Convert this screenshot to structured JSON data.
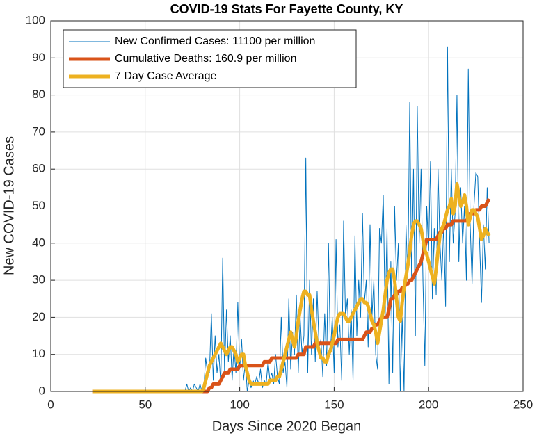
{
  "chart_data": {
    "type": "line",
    "title": "COVID-19 Stats For Fayette County, KY",
    "x_label": "Days Since 2020 Began",
    "y_label": "New COVID-19 Cases",
    "xlim": [
      0,
      250
    ],
    "xticks": [
      0,
      50,
      100,
      150,
      200,
      250
    ],
    "ylim": [
      0,
      100
    ],
    "yticks": [
      0,
      10,
      20,
      30,
      40,
      50,
      60,
      70,
      80,
      90,
      100
    ],
    "grid": true,
    "legend_position": "upper left",
    "x": [
      22,
      23,
      24,
      25,
      26,
      27,
      28,
      29,
      30,
      31,
      32,
      33,
      34,
      35,
      36,
      37,
      38,
      39,
      40,
      41,
      42,
      43,
      44,
      45,
      46,
      47,
      48,
      49,
      50,
      51,
      52,
      53,
      54,
      55,
      56,
      57,
      58,
      59,
      60,
      61,
      62,
      63,
      64,
      65,
      66,
      67,
      68,
      69,
      70,
      71,
      72,
      73,
      74,
      75,
      76,
      77,
      78,
      79,
      80,
      81,
      82,
      83,
      84,
      85,
      86,
      87,
      88,
      89,
      90,
      91,
      92,
      93,
      94,
      95,
      96,
      97,
      98,
      99,
      100,
      101,
      102,
      103,
      104,
      105,
      106,
      107,
      108,
      109,
      110,
      111,
      112,
      113,
      114,
      115,
      116,
      117,
      118,
      119,
      120,
      121,
      122,
      123,
      124,
      125,
      126,
      127,
      128,
      129,
      130,
      131,
      132,
      133,
      134,
      135,
      136,
      137,
      138,
      139,
      140,
      141,
      142,
      143,
      144,
      145,
      146,
      147,
      148,
      149,
      150,
      151,
      152,
      153,
      154,
      155,
      156,
      157,
      158,
      159,
      160,
      161,
      162,
      163,
      164,
      165,
      166,
      167,
      168,
      169,
      170,
      171,
      172,
      173,
      174,
      175,
      176,
      177,
      178,
      179,
      180,
      181,
      182,
      183,
      184,
      185,
      186,
      187,
      188,
      189,
      190,
      191,
      192,
      193,
      194,
      195,
      196,
      197,
      198,
      199,
      200,
      201,
      202,
      203,
      204,
      205,
      206,
      207,
      208,
      209,
      210,
      211,
      212,
      213,
      214,
      215,
      216,
      217,
      218,
      219,
      220,
      221,
      222,
      223,
      224,
      225,
      226,
      227,
      228,
      229,
      230,
      231,
      232
    ],
    "series": [
      {
        "name": "New Confirmed Cases: 11100 per million",
        "color": "#0072bd",
        "width": 1,
        "values": [
          0,
          0,
          0,
          0,
          0,
          0,
          0,
          0,
          0,
          0,
          0,
          0,
          0,
          0,
          0,
          0,
          0,
          0,
          0,
          0,
          0,
          0,
          0,
          0,
          0,
          0,
          0,
          0,
          0,
          0,
          0,
          0,
          0,
          0,
          0,
          0,
          0,
          0,
          0,
          0,
          0,
          0,
          0,
          0,
          0,
          0,
          0,
          0,
          0,
          0,
          2,
          0,
          1,
          0,
          2,
          1,
          0,
          2,
          0,
          1,
          9,
          5,
          5,
          21,
          3,
          15,
          5,
          10,
          2,
          36,
          5,
          22,
          8,
          15,
          3,
          12,
          5,
          24,
          6,
          14,
          3,
          8,
          0,
          3,
          1,
          3,
          2,
          4,
          2,
          6,
          1,
          3,
          2,
          8,
          3,
          5,
          2,
          10,
          4,
          2,
          20,
          5,
          8,
          1,
          25,
          6,
          16,
          10,
          26,
          5,
          20,
          10,
          15,
          63,
          5,
          30,
          10,
          25,
          8,
          27,
          12,
          14,
          4,
          21,
          7,
          40,
          10,
          20,
          5,
          41,
          12,
          18,
          3,
          46,
          20,
          25,
          10,
          22,
          3,
          42,
          15,
          30,
          20,
          48,
          24,
          30,
          12,
          45,
          20,
          30,
          10,
          6,
          44,
          40,
          53,
          20,
          44,
          2,
          35,
          5,
          50,
          30,
          40,
          0,
          20,
          0,
          45,
          30,
          78,
          30,
          60,
          15,
          77,
          40,
          60,
          30,
          7,
          50,
          38,
          62,
          25,
          44,
          26,
          60,
          40,
          30,
          45,
          23,
          93,
          35,
          60,
          40,
          48,
          80,
          35,
          55,
          40,
          50,
          30,
          87,
          45,
          29,
          50,
          59,
          58,
          40,
          24,
          45,
          33,
          55,
          40
        ]
      },
      {
        "name": "Cumulative Deaths: 160.9 per million",
        "color": "#d95319",
        "width": 5,
        "values": [
          0,
          0,
          0,
          0,
          0,
          0,
          0,
          0,
          0,
          0,
          0,
          0,
          0,
          0,
          0,
          0,
          0,
          0,
          0,
          0,
          0,
          0,
          0,
          0,
          0,
          0,
          0,
          0,
          0,
          0,
          0,
          0,
          0,
          0,
          0,
          0,
          0,
          0,
          0,
          0,
          0,
          0,
          0,
          0,
          0,
          0,
          0,
          0,
          0,
          0,
          0,
          0,
          0,
          0,
          0,
          0,
          0,
          0,
          0,
          0,
          0,
          0,
          1,
          1,
          2,
          2,
          2,
          2,
          3,
          4,
          5,
          5,
          5,
          6,
          6,
          6,
          6,
          6,
          7,
          7,
          7,
          7,
          7,
          7,
          7,
          7,
          7,
          7,
          7,
          7,
          7,
          8,
          8,
          8,
          8,
          9,
          9,
          9,
          9,
          9,
          9,
          9,
          9,
          9,
          9,
          9,
          9,
          9,
          9,
          10,
          10,
          10,
          10,
          12,
          12,
          12,
          12,
          12,
          13,
          13,
          13,
          13,
          13,
          13,
          13,
          13,
          13,
          13,
          13,
          13,
          14,
          14,
          14,
          14,
          14,
          14,
          14,
          14,
          14,
          14,
          14,
          14,
          14,
          14,
          15,
          16,
          16,
          16,
          17,
          17,
          18,
          18,
          19,
          20,
          20,
          20,
          20,
          22,
          25,
          25,
          26,
          26,
          27,
          27,
          28,
          28,
          29,
          29,
          30,
          30,
          31,
          32,
          33,
          34,
          35,
          37,
          39,
          41,
          41,
          41,
          41,
          41,
          41,
          42,
          43,
          43,
          44,
          44,
          45,
          45,
          45,
          46,
          46,
          46,
          46,
          46,
          46,
          46,
          46,
          47,
          48,
          48,
          48,
          49,
          49,
          49,
          50,
          50,
          50,
          51,
          52
        ]
      },
      {
        "name": "7 Day Case Average",
        "color": "#edb120",
        "width": 5,
        "values": [
          0,
          0,
          0,
          0,
          0,
          0,
          0,
          0,
          0,
          0,
          0,
          0,
          0,
          0,
          0,
          0,
          0,
          0,
          0,
          0,
          0,
          0,
          0,
          0,
          0,
          0,
          0,
          0,
          0,
          0,
          0,
          0,
          0,
          0,
          0,
          0,
          0,
          0,
          0,
          0,
          0,
          0,
          0,
          0,
          0,
          0,
          0,
          0,
          0,
          0,
          0,
          0,
          0,
          0,
          0,
          0,
          0,
          0,
          0,
          1,
          3,
          5,
          7,
          8,
          9,
          10,
          11,
          12,
          13,
          12,
          11,
          10,
          11,
          12,
          12,
          11,
          10,
          8,
          9,
          10,
          10,
          7,
          5,
          3,
          2,
          2,
          2,
          2,
          2,
          2,
          2,
          2,
          2,
          2,
          3,
          3,
          3,
          3,
          4,
          4,
          6,
          8,
          10,
          12,
          14,
          16,
          14,
          12,
          15,
          19,
          22,
          25,
          27,
          27,
          26,
          26,
          22,
          19,
          16,
          13,
          11,
          9,
          9,
          8,
          8,
          10,
          11,
          13,
          15,
          18,
          20,
          21,
          21,
          21,
          20,
          19,
          19,
          20,
          21,
          22,
          23,
          24,
          25,
          25,
          24,
          24,
          23,
          21,
          19,
          18,
          16,
          13,
          16,
          19,
          22,
          26,
          30,
          32,
          33,
          33,
          30,
          25,
          20,
          19,
          24,
          28,
          31,
          34,
          38,
          42,
          45,
          46,
          46,
          45,
          44,
          41,
          38,
          37,
          35,
          33,
          31,
          29,
          33,
          38,
          42,
          44,
          45,
          47,
          49,
          50,
          52,
          48,
          50,
          56,
          53,
          50,
          51,
          53,
          50,
          45,
          47,
          49,
          49,
          48,
          47,
          44,
          41,
          42,
          44,
          43,
          42
        ]
      }
    ]
  }
}
